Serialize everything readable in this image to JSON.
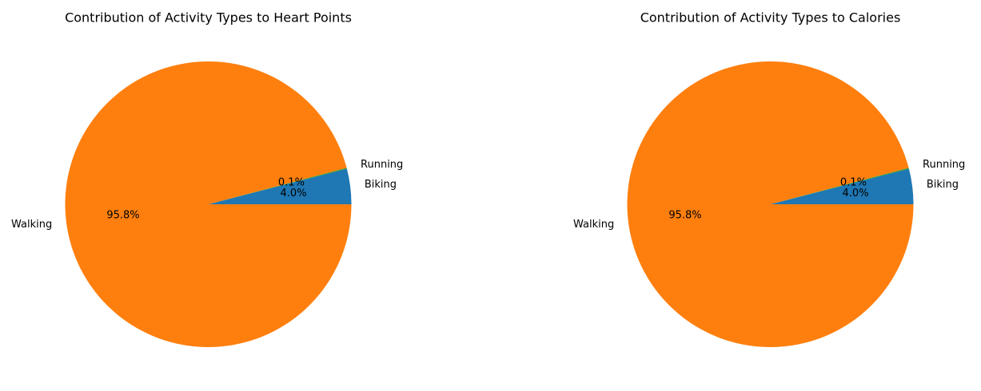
{
  "chart_data": [
    {
      "type": "pie",
      "title": "Contribution of Activity Types to Heart Points",
      "slices": [
        {
          "label": "Biking",
          "value": 4.0,
          "pct_label": "4.0%",
          "color": "#1f77b4"
        },
        {
          "label": "Running",
          "value": 0.1,
          "pct_label": "0.1%",
          "color": "#2ca02c"
        },
        {
          "label": "Walking",
          "value": 95.8,
          "pct_label": "95.8%",
          "color": "#ff7f0e"
        }
      ]
    },
    {
      "type": "pie",
      "title": "Contribution of Activity Types to Calories",
      "slices": [
        {
          "label": "Biking",
          "value": 4.0,
          "pct_label": "4.0%",
          "color": "#1f77b4"
        },
        {
          "label": "Running",
          "value": 0.1,
          "pct_label": "0.1%",
          "color": "#2ca02c"
        },
        {
          "label": "Walking",
          "value": 95.8,
          "pct_label": "95.8%",
          "color": "#ff7f0e"
        }
      ]
    }
  ]
}
